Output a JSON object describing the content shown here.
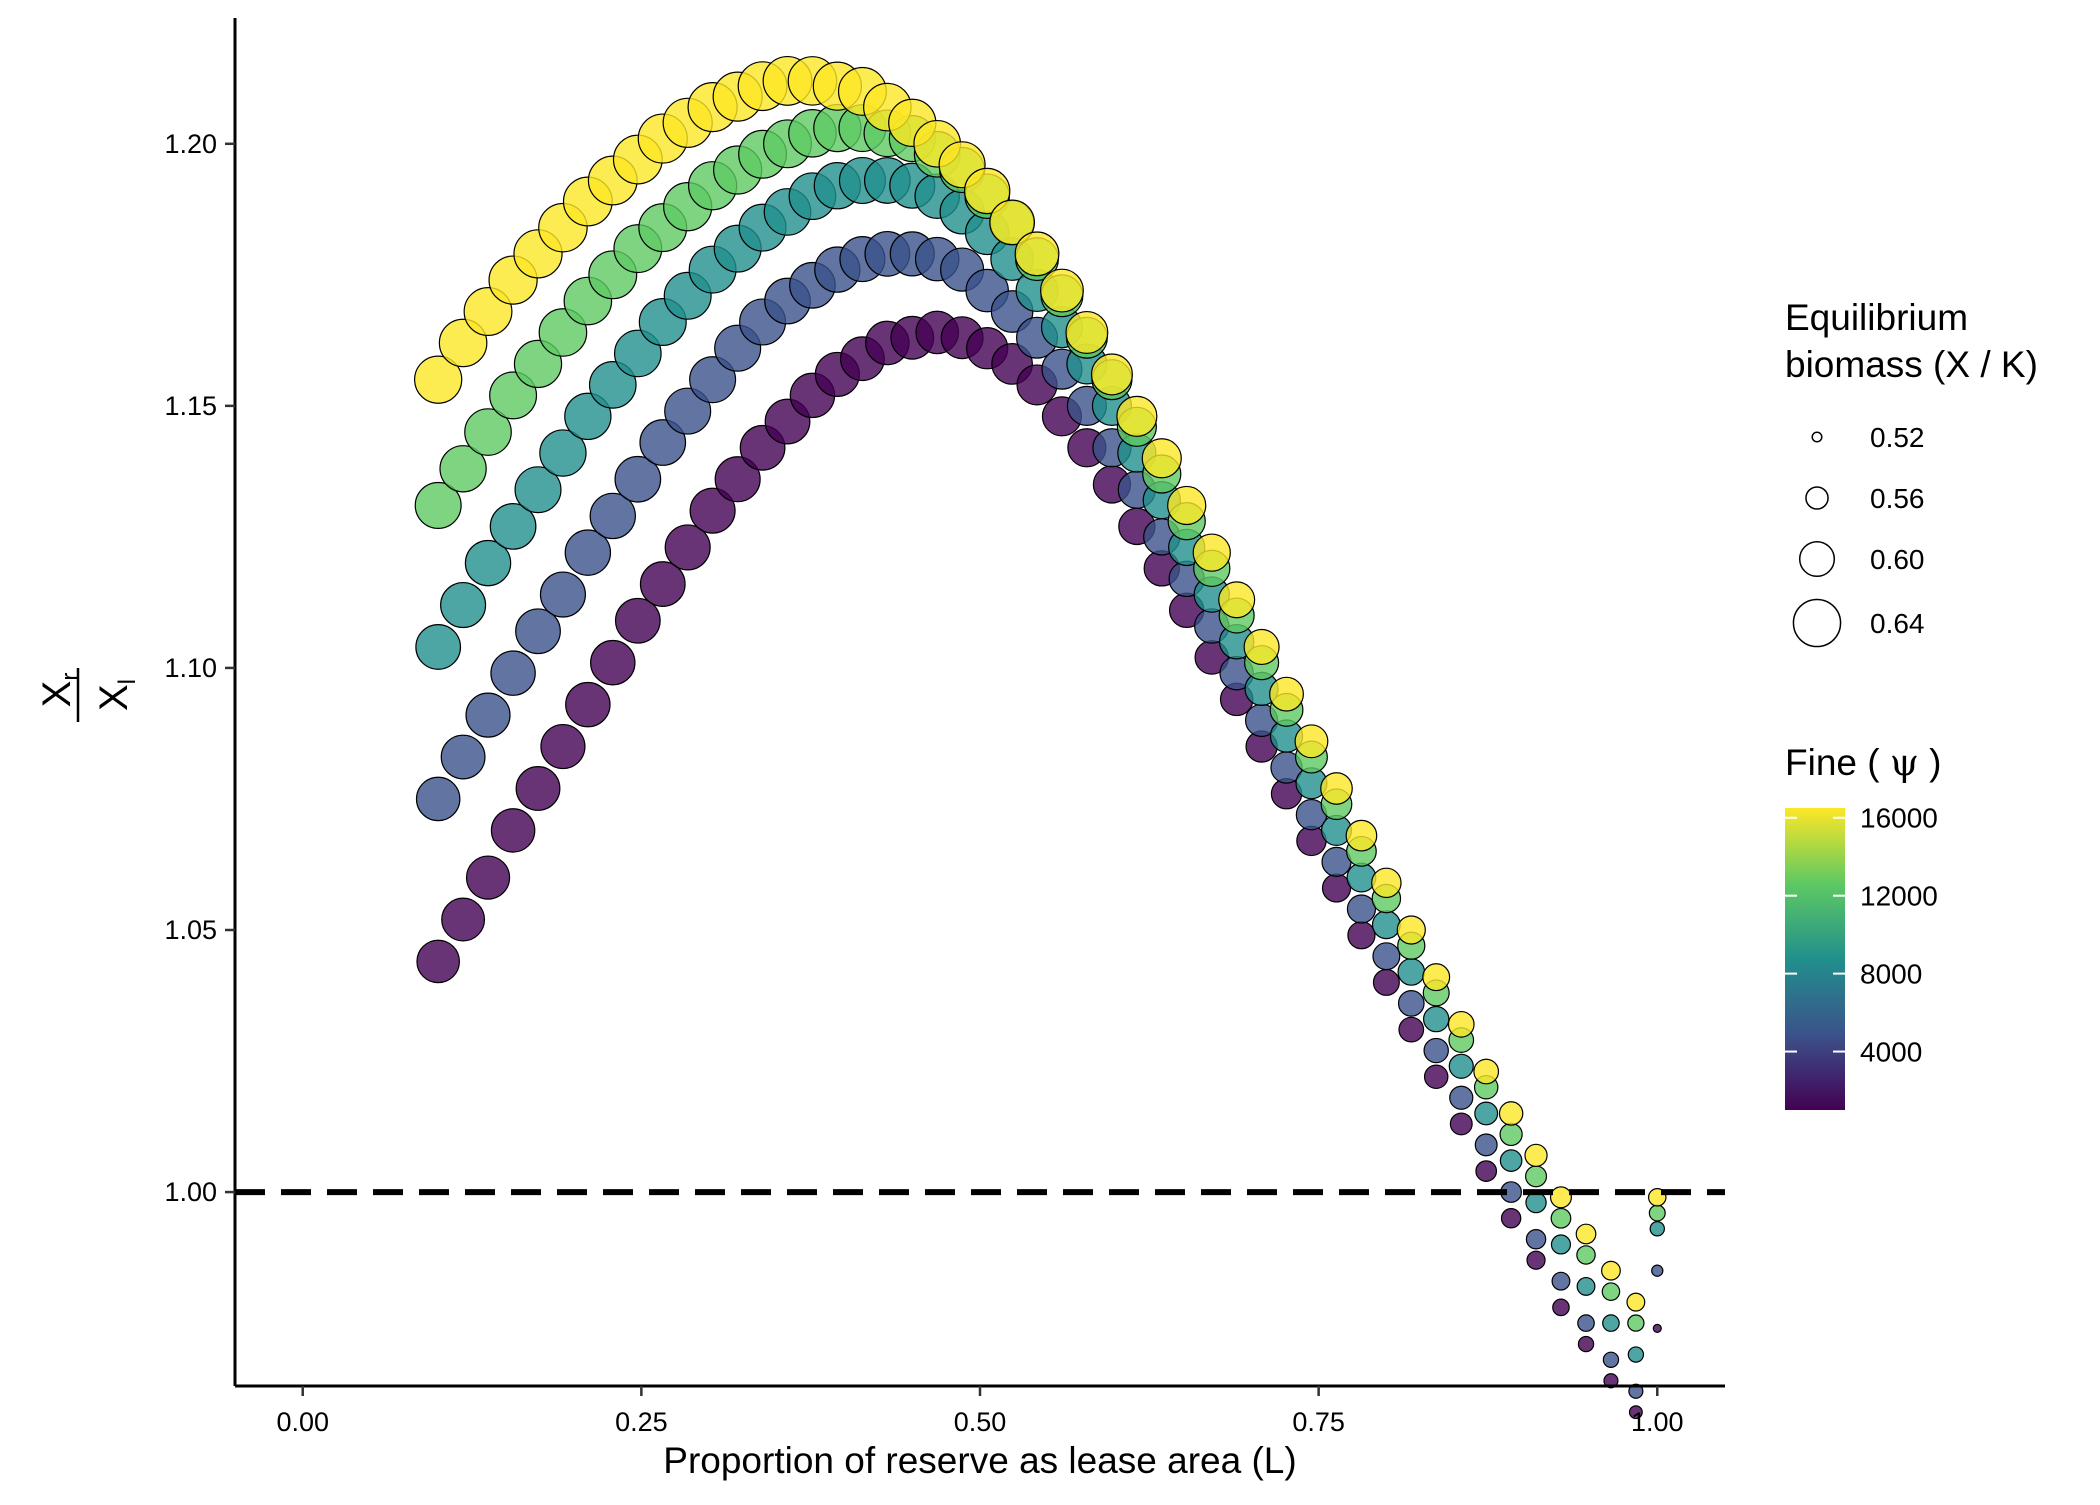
{
  "chart_data": {
    "type": "scatter",
    "title": "",
    "xlabel": "Proportion of reserve as lease area (L)",
    "ylabel": {
      "numerator": "X",
      "numerator_sub": "r",
      "denominator": "X",
      "denominator_sub": "l"
    },
    "xlim": [
      -0.05,
      1.05
    ],
    "ylim": [
      0.963,
      1.224
    ],
    "x_ticks": [
      0.0,
      0.25,
      0.5,
      0.75,
      1.0
    ],
    "x_tick_labels": [
      "0.00",
      "0.25",
      "0.50",
      "0.75",
      "1.00"
    ],
    "y_ticks": [
      1.0,
      1.05,
      1.1,
      1.15,
      1.2
    ],
    "y_tick_labels": [
      "1.00",
      "1.05",
      "1.10",
      "1.15",
      "1.20"
    ],
    "grid": false,
    "reference_line": {
      "y": 1.0,
      "style": "dashed"
    },
    "point_x": [
      0.1,
      0.1184,
      0.1368,
      0.1553,
      0.1737,
      0.1921,
      0.2105,
      0.2289,
      0.2474,
      0.2658,
      0.2842,
      0.3026,
      0.3211,
      0.3395,
      0.3579,
      0.3763,
      0.3947,
      0.4132,
      0.4316,
      0.45,
      0.4684,
      0.4868,
      0.5053,
      0.5237,
      0.5421,
      0.5605,
      0.5789,
      0.5974,
      0.6158,
      0.6342,
      0.6526,
      0.6711,
      0.6895,
      0.7079,
      0.7263,
      0.7447,
      0.7632,
      0.7816,
      0.8,
      0.8184,
      0.8368,
      0.8553,
      0.8737,
      0.8921,
      0.9105,
      0.9289,
      0.9474,
      0.9658,
      0.9842,
      1.0
    ],
    "series": [
      {
        "fine": 1000,
        "color": "#440154",
        "y": [
          1.044,
          1.052,
          1.06,
          1.069,
          1.077,
          1.085,
          1.093,
          1.101,
          1.109,
          1.116,
          1.123,
          1.13,
          1.136,
          1.142,
          1.147,
          1.152,
          1.156,
          1.159,
          1.162,
          1.163,
          1.164,
          1.163,
          1.161,
          1.158,
          1.154,
          1.148,
          1.142,
          1.135,
          1.127,
          1.119,
          1.111,
          1.102,
          1.094,
          1.085,
          1.076,
          1.067,
          1.058,
          1.049,
          1.04,
          1.031,
          1.022,
          1.013,
          1.004,
          0.995,
          0.987,
          0.978,
          0.971,
          0.964,
          0.958,
          0.974
        ],
        "biomass": [
          0.625,
          0.626,
          0.627,
          0.628,
          0.629,
          0.63,
          0.631,
          0.631,
          0.632,
          0.632,
          0.633,
          0.633,
          0.633,
          0.632,
          0.632,
          0.631,
          0.63,
          0.629,
          0.628,
          0.626,
          0.625,
          0.623,
          0.621,
          0.619,
          0.617,
          0.614,
          0.611,
          0.608,
          0.605,
          0.602,
          0.599,
          0.596,
          0.593,
          0.589,
          0.586,
          0.583,
          0.579,
          0.576,
          0.572,
          0.568,
          0.564,
          0.559,
          0.555,
          0.551,
          0.547,
          0.542,
          0.538,
          0.534,
          0.53,
          0.515
        ]
      },
      {
        "fine": 4000,
        "color": "#3b528b",
        "y": [
          1.075,
          1.083,
          1.091,
          1.099,
          1.107,
          1.114,
          1.122,
          1.129,
          1.136,
          1.143,
          1.149,
          1.155,
          1.161,
          1.166,
          1.17,
          1.173,
          1.176,
          1.178,
          1.179,
          1.179,
          1.178,
          1.176,
          1.172,
          1.168,
          1.163,
          1.157,
          1.15,
          1.142,
          1.134,
          1.125,
          1.117,
          1.108,
          1.099,
          1.09,
          1.081,
          1.072,
          1.063,
          1.054,
          1.045,
          1.036,
          1.027,
          1.018,
          1.009,
          1.0,
          0.991,
          0.983,
          0.975,
          0.968,
          0.962,
          0.985
        ],
        "biomass": [
          0.628,
          0.629,
          0.63,
          0.631,
          0.632,
          0.633,
          0.634,
          0.634,
          0.635,
          0.635,
          0.636,
          0.636,
          0.636,
          0.636,
          0.635,
          0.635,
          0.634,
          0.633,
          0.632,
          0.63,
          0.628,
          0.627,
          0.625,
          0.622,
          0.62,
          0.617,
          0.614,
          0.611,
          0.608,
          0.605,
          0.602,
          0.599,
          0.596,
          0.592,
          0.589,
          0.586,
          0.582,
          0.579,
          0.575,
          0.571,
          0.567,
          0.563,
          0.559,
          0.555,
          0.551,
          0.546,
          0.542,
          0.538,
          0.534,
          0.525
        ]
      },
      {
        "fine": 8000,
        "color": "#21908c",
        "y": [
          1.104,
          1.112,
          1.12,
          1.127,
          1.134,
          1.141,
          1.148,
          1.154,
          1.16,
          1.166,
          1.171,
          1.176,
          1.18,
          1.184,
          1.187,
          1.19,
          1.192,
          1.193,
          1.193,
          1.192,
          1.19,
          1.187,
          1.183,
          1.178,
          1.172,
          1.165,
          1.158,
          1.15,
          1.141,
          1.132,
          1.123,
          1.114,
          1.105,
          1.096,
          1.087,
          1.078,
          1.069,
          1.06,
          1.051,
          1.042,
          1.033,
          1.024,
          1.015,
          1.006,
          0.998,
          0.99,
          0.982,
          0.975,
          0.969,
          0.993
        ],
        "biomass": [
          0.632,
          0.633,
          0.634,
          0.635,
          0.636,
          0.637,
          0.637,
          0.638,
          0.638,
          0.639,
          0.639,
          0.639,
          0.639,
          0.639,
          0.638,
          0.638,
          0.637,
          0.636,
          0.635,
          0.633,
          0.631,
          0.63,
          0.628,
          0.625,
          0.623,
          0.62,
          0.617,
          0.614,
          0.611,
          0.608,
          0.605,
          0.602,
          0.599,
          0.595,
          0.592,
          0.588,
          0.585,
          0.581,
          0.578,
          0.574,
          0.57,
          0.566,
          0.562,
          0.558,
          0.554,
          0.55,
          0.546,
          0.542,
          0.538,
          0.535
        ]
      },
      {
        "fine": 12000,
        "color": "#5ec962",
        "y": [
          1.131,
          1.138,
          1.145,
          1.152,
          1.158,
          1.164,
          1.17,
          1.175,
          1.18,
          1.184,
          1.188,
          1.192,
          1.195,
          1.198,
          1.2,
          1.202,
          1.203,
          1.203,
          1.202,
          1.201,
          1.198,
          1.195,
          1.19,
          1.185,
          1.178,
          1.171,
          1.163,
          1.155,
          1.146,
          1.137,
          1.128,
          1.119,
          1.11,
          1.101,
          1.092,
          1.083,
          1.074,
          1.065,
          1.056,
          1.047,
          1.038,
          1.029,
          1.02,
          1.011,
          1.003,
          0.995,
          0.988,
          0.981,
          0.975,
          0.996
        ],
        "biomass": [
          0.636,
          0.637,
          0.638,
          0.639,
          0.64,
          0.641,
          0.641,
          0.642,
          0.642,
          0.642,
          0.643,
          0.643,
          0.643,
          0.642,
          0.642,
          0.641,
          0.64,
          0.639,
          0.638,
          0.636,
          0.635,
          0.633,
          0.631,
          0.628,
          0.626,
          0.623,
          0.62,
          0.617,
          0.614,
          0.611,
          0.608,
          0.605,
          0.601,
          0.598,
          0.594,
          0.591,
          0.587,
          0.584,
          0.58,
          0.576,
          0.572,
          0.568,
          0.564,
          0.56,
          0.556,
          0.552,
          0.548,
          0.545,
          0.541,
          0.54
        ]
      },
      {
        "fine": 16000,
        "color": "#fde725",
        "y": [
          1.155,
          1.162,
          1.168,
          1.174,
          1.179,
          1.184,
          1.189,
          1.193,
          1.197,
          1.201,
          1.204,
          1.207,
          1.209,
          1.211,
          1.212,
          1.212,
          1.211,
          1.21,
          1.207,
          1.204,
          1.2,
          1.196,
          1.191,
          1.185,
          1.179,
          1.172,
          1.164,
          1.156,
          1.148,
          1.14,
          1.131,
          1.122,
          1.113,
          1.104,
          1.095,
          1.086,
          1.077,
          1.068,
          1.059,
          1.05,
          1.041,
          1.032,
          1.023,
          1.015,
          1.007,
          0.999,
          0.992,
          0.985,
          0.979,
          0.999
        ],
        "biomass": [
          0.64,
          0.641,
          0.642,
          0.643,
          0.643,
          0.644,
          0.645,
          0.645,
          0.645,
          0.646,
          0.646,
          0.646,
          0.646,
          0.645,
          0.645,
          0.644,
          0.643,
          0.642,
          0.641,
          0.64,
          0.638,
          0.636,
          0.634,
          0.632,
          0.629,
          0.626,
          0.623,
          0.62,
          0.617,
          0.614,
          0.611,
          0.608,
          0.604,
          0.601,
          0.597,
          0.594,
          0.59,
          0.587,
          0.583,
          0.579,
          0.575,
          0.571,
          0.568,
          0.564,
          0.56,
          0.556,
          0.552,
          0.549,
          0.546,
          0.545
        ]
      }
    ],
    "size_legend": {
      "title_lines": [
        "Equilibrium",
        "biomass (X / K)"
      ],
      "labels": [
        "0.52",
        "0.56",
        "0.60",
        "0.64"
      ],
      "values": [
        0.52,
        0.56,
        0.6,
        0.64
      ]
    },
    "color_legend": {
      "title_prefix": "Fine ( ",
      "title_symbol": "ψ",
      "title_suffix": " )",
      "labels": [
        "16000",
        "12000",
        "8000",
        "4000"
      ],
      "values": [
        16000,
        12000,
        8000,
        4000
      ],
      "range": [
        1000,
        16500
      ],
      "colors": [
        "#440154",
        "#3b528b",
        "#21908c",
        "#5ec962",
        "#fde725"
      ]
    }
  }
}
